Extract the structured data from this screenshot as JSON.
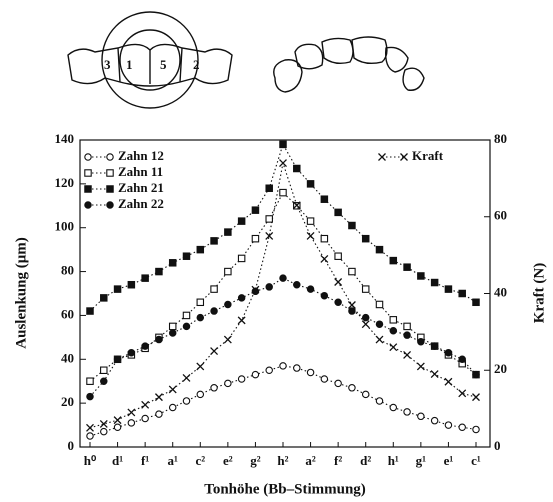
{
  "illustration": {
    "labels": [
      "3",
      "1",
      "5",
      "2"
    ]
  },
  "chart_data": {
    "type": "line",
    "y_label": "Auslenkung (μm)",
    "y2_label": "Kraft (N)",
    "x_label": "Tonhöhe (Bb–Stimmung)",
    "categories": [
      "h⁰",
      null,
      "d¹",
      null,
      "f¹",
      null,
      "a¹",
      null,
      "c²",
      null,
      "e²",
      null,
      "g²",
      null,
      "h²",
      null,
      "a²",
      null,
      "f²",
      null,
      "d²",
      null,
      "h¹",
      null,
      "g¹",
      null,
      "e¹",
      null,
      "c¹"
    ],
    "ylim": [
      0,
      140
    ],
    "yticks": [
      0,
      20,
      40,
      60,
      80,
      100,
      120,
      140
    ],
    "y2lim": [
      0,
      80
    ],
    "y2ticks": [
      0,
      20,
      40,
      60,
      80
    ],
    "series": [
      {
        "name": "Zahn 12",
        "color": "#111111",
        "marker": "circle-open",
        "values": [
          5,
          7,
          9,
          11,
          13,
          15,
          18,
          21,
          24,
          27,
          29,
          31,
          33,
          35,
          37,
          36,
          34,
          31,
          29,
          27,
          24,
          21,
          18,
          16,
          14,
          12,
          10,
          9,
          8
        ]
      },
      {
        "name": "Zahn 11",
        "color": "#111111",
        "marker": "square-open",
        "values": [
          30,
          35,
          40,
          42,
          45,
          50,
          55,
          60,
          66,
          72,
          80,
          86,
          95,
          104,
          116,
          110,
          103,
          95,
          87,
          80,
          72,
          65,
          58,
          55,
          50,
          46,
          42,
          38,
          33
        ]
      },
      {
        "name": "Zahn 21",
        "color": "#111111",
        "marker": "square-filled",
        "values": [
          62,
          68,
          72,
          74,
          77,
          80,
          84,
          87,
          90,
          94,
          98,
          103,
          108,
          118,
          138,
          127,
          120,
          113,
          107,
          101,
          95,
          90,
          85,
          82,
          78,
          75,
          72,
          70,
          66
        ]
      },
      {
        "name": "Zahn 22",
        "color": "#111111",
        "marker": "circle-filled",
        "values": [
          23,
          30,
          40,
          43,
          46,
          49,
          52,
          55,
          59,
          62,
          65,
          68,
          71,
          73,
          77,
          74,
          72,
          69,
          66,
          62,
          59,
          56,
          53,
          51,
          48,
          46,
          43,
          40,
          33
        ]
      },
      {
        "name": "Kraft",
        "color": "#111111",
        "marker": "cross",
        "axis": "y2",
        "values": [
          5,
          6,
          7,
          9,
          11,
          13,
          15,
          18,
          21,
          25,
          28,
          33,
          41,
          55,
          74,
          63,
          55,
          49,
          43,
          37,
          32,
          28,
          26,
          24,
          21,
          19,
          17,
          14,
          13
        ]
      }
    ]
  }
}
